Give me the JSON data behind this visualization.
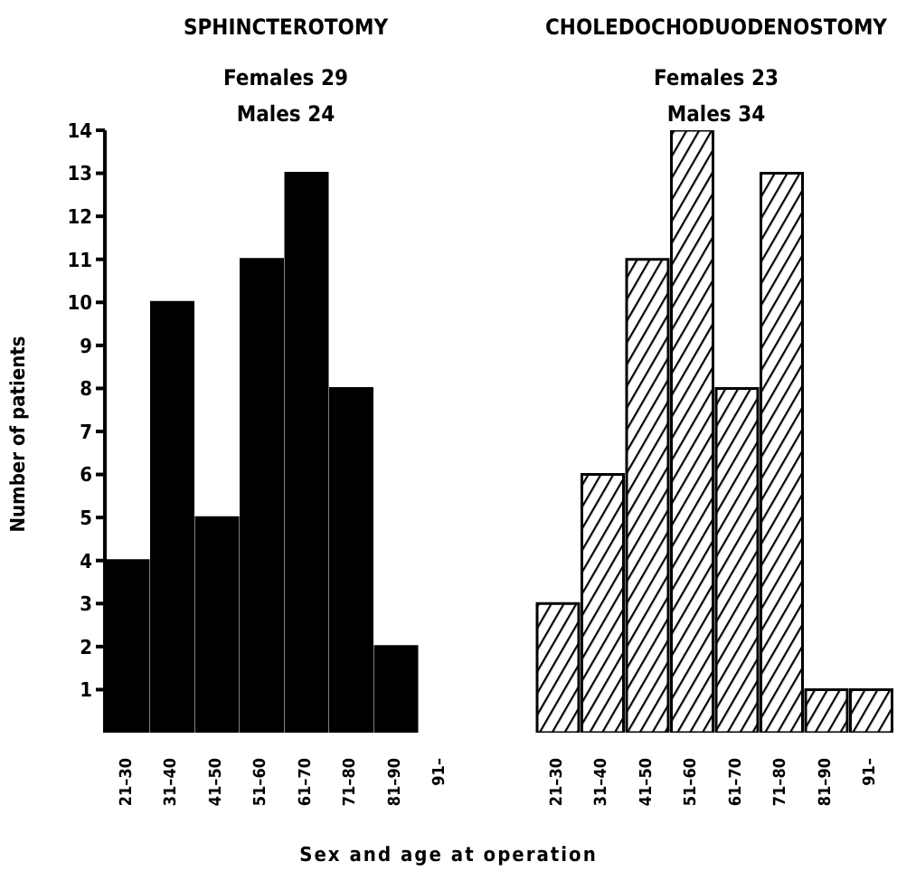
{
  "chart_data": [
    {
      "type": "bar",
      "title": "SPHINCTEROTOMY",
      "annotations": [
        "Females 29",
        "Males 24"
      ],
      "xlabel": "Sex and age at operation",
      "ylabel": "Number of patients",
      "categories": [
        "21–30",
        "31–40",
        "41–50",
        "51–60",
        "61–70",
        "71–80",
        "81–90",
        "91–"
      ],
      "values": [
        4,
        10,
        5,
        11,
        13,
        8,
        2,
        0
      ],
      "color": "#000000",
      "ylim": [
        0,
        14
      ],
      "yticks": [
        1,
        2,
        3,
        4,
        5,
        6,
        7,
        8,
        9,
        10,
        11,
        12,
        13,
        14
      ]
    },
    {
      "type": "bar",
      "title": "CHOLEDOCHODUODENOSTOMY",
      "annotations": [
        "Females 23",
        "Males 34"
      ],
      "categories": [
        "21–30",
        "31–40",
        "41–50",
        "51–60",
        "61–70",
        "71–80",
        "81–90",
        "91–"
      ],
      "values": [
        3,
        6,
        11,
        14,
        8,
        13,
        1,
        1
      ],
      "color": "#000000",
      "ylim": [
        0,
        14
      ],
      "yticks": [
        1,
        2,
        3,
        4,
        5,
        6,
        7,
        8,
        9,
        10,
        11,
        12,
        13,
        14
      ],
      "tick_labels": "x"
    }
  ]
}
